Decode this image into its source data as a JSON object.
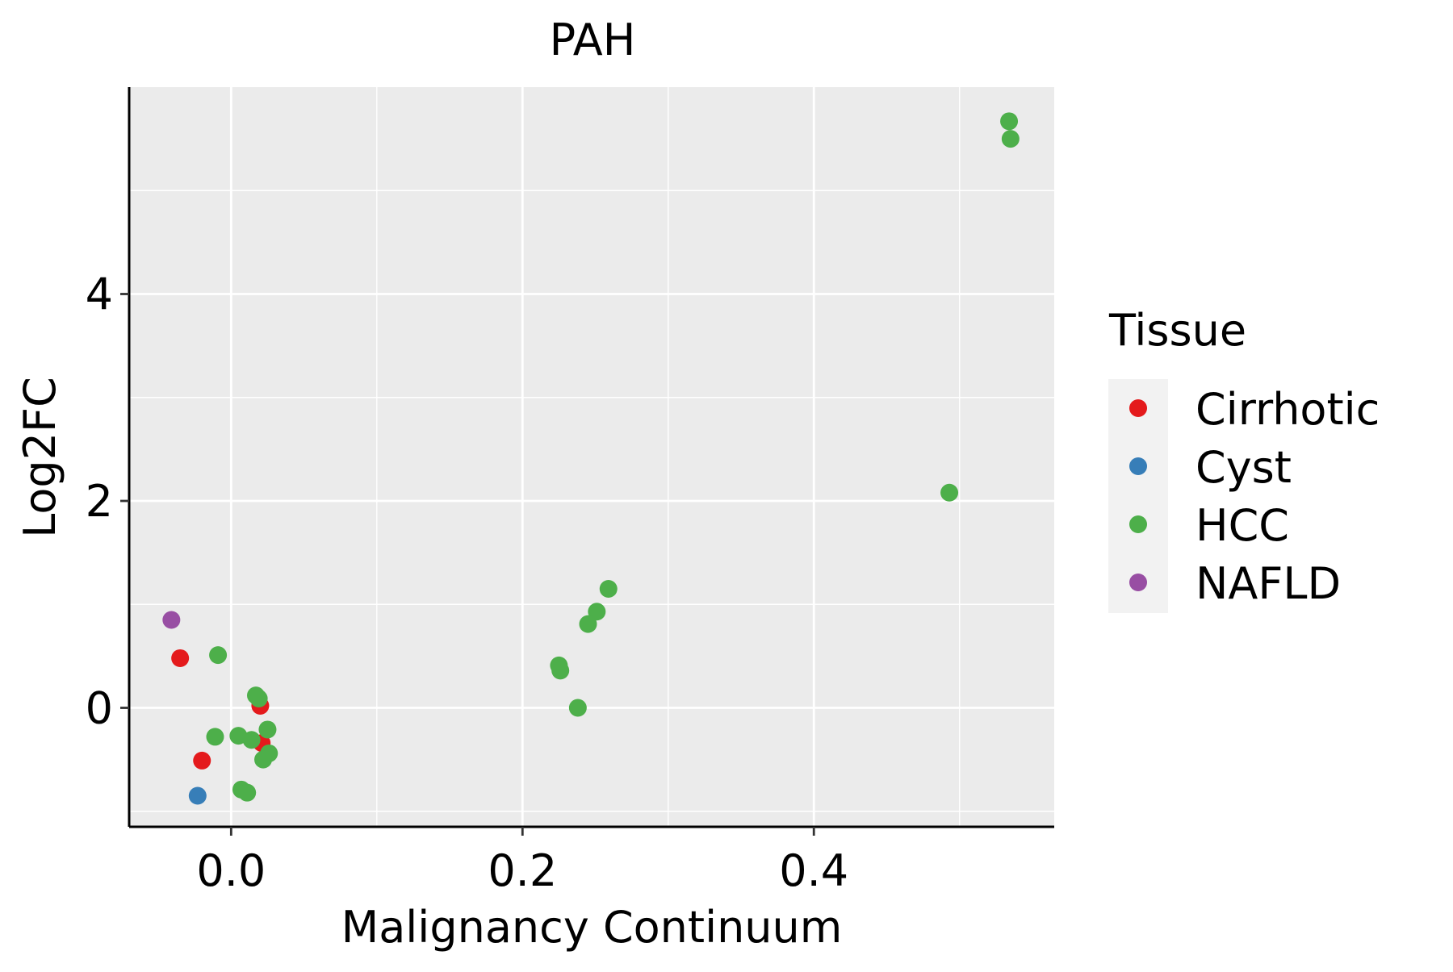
{
  "chart_data": {
    "type": "scatter",
    "title": "PAH",
    "xlabel": "Malignancy Continuum",
    "ylabel": "Log2FC",
    "xlim": [
      -0.07,
      0.565
    ],
    "ylim": [
      -1.15,
      6.0
    ],
    "x_ticks": [
      0.0,
      0.2,
      0.4
    ],
    "x_tick_labels": [
      "0.0",
      "0.2",
      "0.4"
    ],
    "y_ticks": [
      0,
      2,
      4
    ],
    "y_tick_labels": [
      "0",
      "2",
      "4"
    ],
    "grid": true,
    "legend": {
      "title": "Tissue",
      "position": "right",
      "entries": [
        {
          "label": "Cirrhotic",
          "color": "#e41a1c"
        },
        {
          "label": "Cyst",
          "color": "#377eb8"
        },
        {
          "label": "HCC",
          "color": "#4daf4a"
        },
        {
          "label": "NAFLD",
          "color": "#984ea3"
        }
      ]
    },
    "series": [
      {
        "name": "Cirrhotic",
        "color": "#e41a1c",
        "points": [
          {
            "x": -0.035,
            "y": 0.48
          },
          {
            "x": -0.02,
            "y": -0.51
          },
          {
            "x": 0.02,
            "y": 0.02
          },
          {
            "x": 0.021,
            "y": -0.34
          }
        ]
      },
      {
        "name": "Cyst",
        "color": "#377eb8",
        "points": [
          {
            "x": -0.023,
            "y": -0.85
          }
        ]
      },
      {
        "name": "HCC",
        "color": "#4daf4a",
        "points": [
          {
            "x": 0.534,
            "y": 5.67
          },
          {
            "x": 0.535,
            "y": 5.5
          },
          {
            "x": 0.493,
            "y": 2.08
          },
          {
            "x": 0.259,
            "y": 1.15
          },
          {
            "x": 0.251,
            "y": 0.93
          },
          {
            "x": 0.245,
            "y": 0.81
          },
          {
            "x": 0.225,
            "y": 0.41
          },
          {
            "x": 0.226,
            "y": 0.36
          },
          {
            "x": 0.238,
            "y": 0.0
          },
          {
            "x": -0.009,
            "y": 0.51
          },
          {
            "x": 0.017,
            "y": 0.12
          },
          {
            "x": 0.019,
            "y": 0.09
          },
          {
            "x": -0.011,
            "y": -0.28
          },
          {
            "x": 0.005,
            "y": -0.27
          },
          {
            "x": 0.014,
            "y": -0.31
          },
          {
            "x": 0.025,
            "y": -0.21
          },
          {
            "x": 0.026,
            "y": -0.44
          },
          {
            "x": 0.022,
            "y": -0.5
          },
          {
            "x": 0.007,
            "y": -0.79
          },
          {
            "x": 0.011,
            "y": -0.82
          }
        ]
      },
      {
        "name": "NAFLD",
        "color": "#984ea3",
        "points": [
          {
            "x": -0.041,
            "y": 0.85
          }
        ]
      }
    ]
  }
}
